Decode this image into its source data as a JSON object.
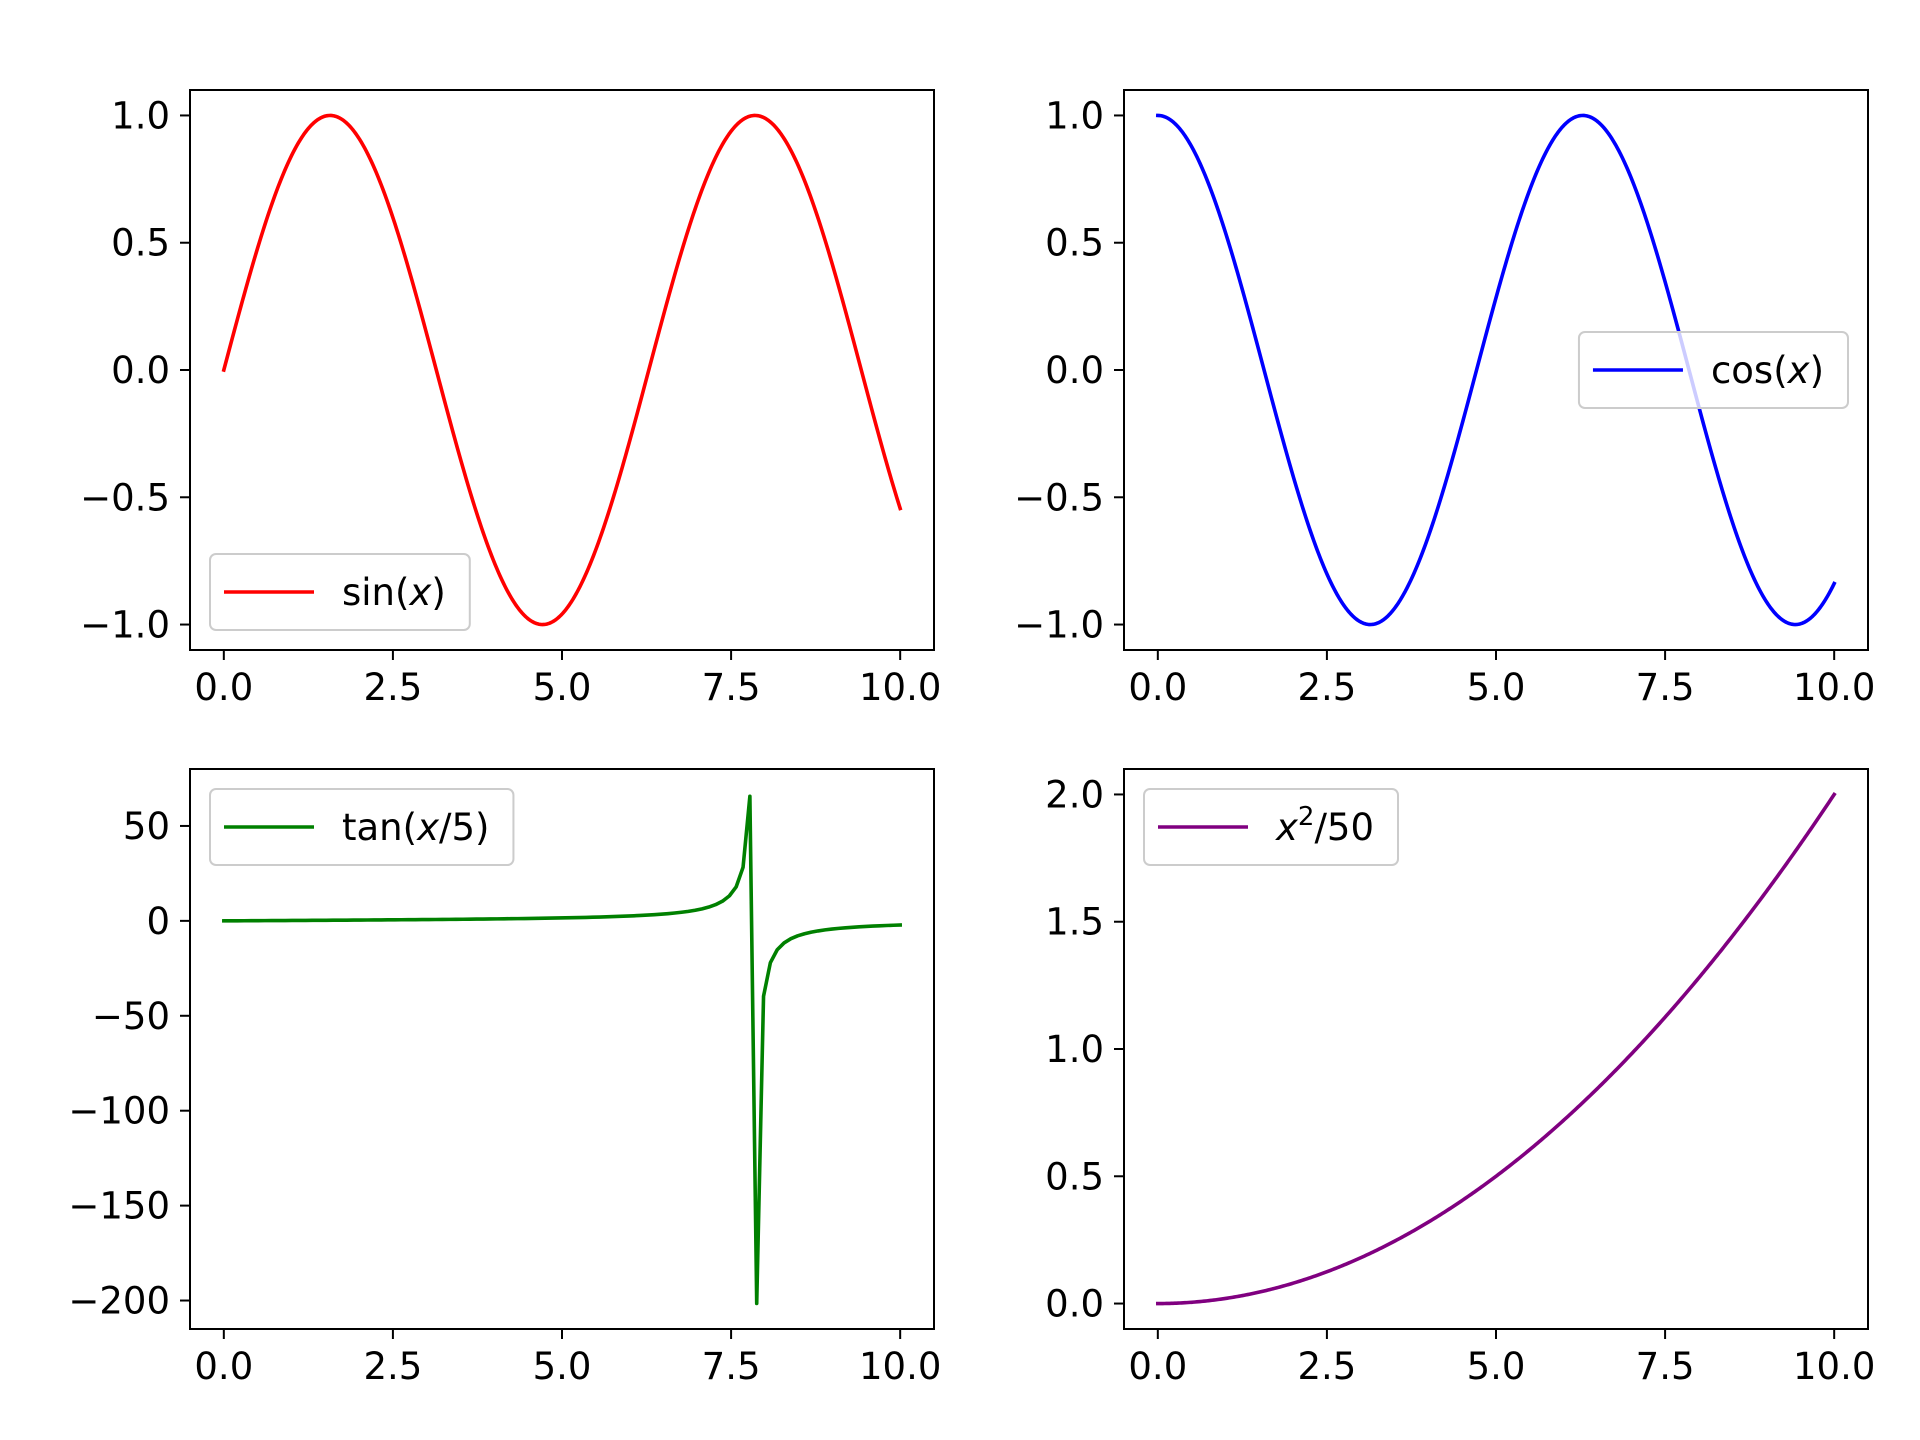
{
  "chart_data": [
    {
      "type": "line",
      "series": [
        {
          "name": "sin(x)",
          "function": "sin",
          "color": "#ff0000"
        }
      ],
      "x_range": [
        0,
        10
      ],
      "xlim": [
        -0.5,
        10.5
      ],
      "ylim": [
        -1.1,
        1.1
      ],
      "xticks": [
        0,
        2.5,
        5,
        7.5,
        10
      ],
      "xtick_labels": [
        "0.0",
        "2.5",
        "5.0",
        "7.5",
        "10.0"
      ],
      "yticks": [
        1,
        0.5,
        0,
        -0.5,
        -1
      ],
      "ytick_labels": [
        "1.0",
        "0.5",
        "0.0",
        "−0.5",
        "−1.0"
      ],
      "legend": {
        "loc": "lower left",
        "labels": [
          {
            "text": "sin(",
            "italic": false
          },
          {
            "text": "x",
            "italic": true
          },
          {
            "text": ")",
            "italic": false
          }
        ]
      },
      "title": "",
      "xlabel": "",
      "ylabel": "",
      "grid": false
    },
    {
      "type": "line",
      "series": [
        {
          "name": "cos(x)",
          "function": "cos",
          "color": "#0000ff"
        }
      ],
      "x_range": [
        0,
        10
      ],
      "xlim": [
        -0.5,
        10.5
      ],
      "ylim": [
        -1.1,
        1.1
      ],
      "xticks": [
        0,
        2.5,
        5,
        7.5,
        10
      ],
      "xtick_labels": [
        "0.0",
        "2.5",
        "5.0",
        "7.5",
        "10.0"
      ],
      "yticks": [
        1,
        0.5,
        0,
        -0.5,
        -1
      ],
      "ytick_labels": [
        "1.0",
        "0.5",
        "0.0",
        "−0.5",
        "−1.0"
      ],
      "legend": {
        "loc": "center right",
        "labels": [
          {
            "text": "cos(",
            "italic": false
          },
          {
            "text": "x",
            "italic": true
          },
          {
            "text": ")",
            "italic": false
          }
        ]
      },
      "title": "",
      "xlabel": "",
      "ylabel": "",
      "grid": false
    },
    {
      "type": "line",
      "series": [
        {
          "name": "tan(x/5)",
          "function": "tan_x_over_5",
          "color": "#008000"
        }
      ],
      "x_range": [
        0,
        10
      ],
      "xlim": [
        -0.5,
        10.5
      ],
      "ylim": [
        -215,
        80
      ],
      "xticks": [
        0,
        2.5,
        5,
        7.5,
        10
      ],
      "xtick_labels": [
        "0.0",
        "2.5",
        "5.0",
        "7.5",
        "10.0"
      ],
      "yticks": [
        50,
        0,
        -50,
        -100,
        -150,
        -200
      ],
      "ytick_labels": [
        "50",
        "0",
        "−50",
        "−100",
        "−150",
        "−200"
      ],
      "legend": {
        "loc": "upper left",
        "labels": [
          {
            "text": "tan(",
            "italic": false
          },
          {
            "text": "x",
            "italic": true
          },
          {
            "text": "/5)",
            "italic": false
          }
        ]
      },
      "title": "",
      "xlabel": "",
      "ylabel": "",
      "grid": false
    },
    {
      "type": "line",
      "series": [
        {
          "name": "x^2/50",
          "function": "x2_over_50",
          "color": "#800080"
        }
      ],
      "x_range": [
        0,
        10
      ],
      "xlim": [
        -0.5,
        10.5
      ],
      "ylim": [
        -0.1,
        2.1
      ],
      "xticks": [
        0,
        2.5,
        5,
        7.5,
        10
      ],
      "xtick_labels": [
        "0.0",
        "2.5",
        "5.0",
        "7.5",
        "10.0"
      ],
      "yticks": [
        2,
        1.5,
        1,
        0.5,
        0
      ],
      "ytick_labels": [
        "2.0",
        "1.5",
        "1.0",
        "0.5",
        "0.0"
      ],
      "legend": {
        "loc": "upper left",
        "labels": [
          {
            "text": "x",
            "italic": true
          },
          {
            "text": "2",
            "italic": false,
            "sup": true
          },
          {
            "text": "/50",
            "italic": false
          }
        ]
      },
      "title": "",
      "xlabel": "",
      "ylabel": "",
      "grid": false
    }
  ]
}
